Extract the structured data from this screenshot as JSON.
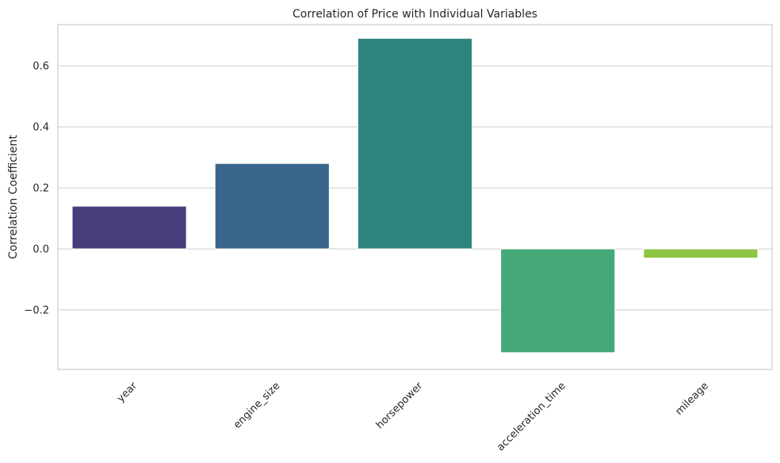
{
  "chart_data": {
    "type": "bar",
    "title": "Correlation of Price with Individual Variables",
    "xlabel": "",
    "ylabel": "Correlation Coefficient",
    "categories": [
      "year",
      "engine_size",
      "horsepower",
      "acceleration_time",
      "mileage"
    ],
    "values": [
      0.14,
      0.28,
      0.69,
      -0.34,
      -0.03
    ],
    "colors": [
      "#483d7b",
      "#39668a",
      "#2e8580",
      "#45a877",
      "#8dc545"
    ],
    "y_ticks": [
      -0.2,
      0.0,
      0.2,
      0.4,
      0.6
    ],
    "y_tick_labels": [
      "−0.2",
      "0.0",
      "0.2",
      "0.4",
      "0.6"
    ],
    "ylim": [
      -0.395,
      0.735
    ],
    "grid": true,
    "legend": "none",
    "x_tick_rotation": 45,
    "style": {
      "grid_color": "#cccccc",
      "spine_color": "#cccccc",
      "text_color": "#262626",
      "background": "#ffffff"
    }
  }
}
